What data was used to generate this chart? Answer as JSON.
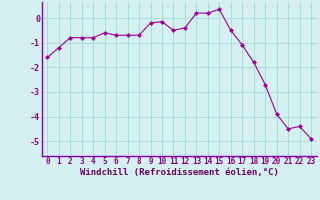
{
  "x": [
    0,
    1,
    2,
    3,
    4,
    5,
    6,
    7,
    8,
    9,
    10,
    11,
    12,
    13,
    14,
    15,
    16,
    17,
    18,
    19,
    20,
    21,
    22,
    23
  ],
  "y": [
    -1.6,
    -1.2,
    -0.8,
    -0.8,
    -0.8,
    -0.6,
    -0.7,
    -0.7,
    -0.7,
    -0.2,
    -0.15,
    -0.5,
    -0.4,
    0.2,
    0.2,
    0.35,
    -0.5,
    -1.1,
    -1.8,
    -2.7,
    -3.9,
    -4.5,
    -4.4,
    -4.9
  ],
  "line_color": "#990099",
  "marker_color": "#990099",
  "bg_color": "#d4f0f0",
  "grid_color": "#aadcdc",
  "xlabel": "Windchill (Refroidissement éolien,°C)",
  "xlabel_color": "#660066",
  "tick_color": "#880088",
  "border_color": "#8800aa",
  "yticks": [
    0,
    -1,
    -2,
    -3,
    -4,
    -5
  ],
  "ylim": [
    -5.6,
    0.65
  ],
  "xlim": [
    -0.5,
    23.5
  ],
  "tick_fontsize": 5.5,
  "xlabel_fontsize": 6.5
}
